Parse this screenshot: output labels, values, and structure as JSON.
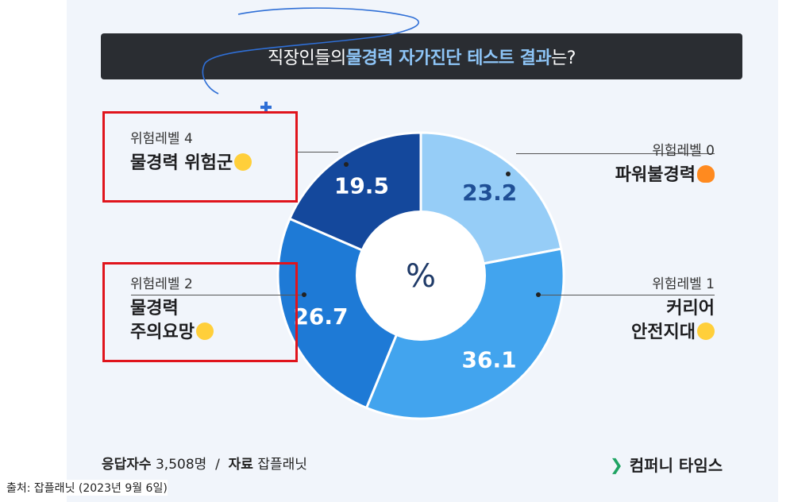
{
  "title": {
    "prefix": "직장인들의 ",
    "highlight": "물경력 자가진단 테스트 결과",
    "suffix": "는?"
  },
  "chart_data": {
    "type": "pie",
    "center_label": "%",
    "slices": [
      {
        "level": "위험레벨 0",
        "name": "파워불경력",
        "value": 23.2,
        "color": "#96cdf7"
      },
      {
        "level": "위험레벨 1",
        "name": "커리어 안전지대",
        "value": 36.1,
        "color": "#42a4ee"
      },
      {
        "level": "위험레벨 2",
        "name": "물경력 주의요망",
        "value": 26.7,
        "color": "#1e7ad6"
      },
      {
        "level": "위험레벨 4",
        "name": "물경력 위험군",
        "value": 19.5,
        "color": "#14489c"
      }
    ]
  },
  "labels": {
    "l0": {
      "level": "위험레벨 0",
      "name": "파워불경력"
    },
    "l1": {
      "level": "위험레벨 1",
      "line1": "커리어",
      "line2": "안전지대"
    },
    "l2": {
      "level": "위험레벨 2",
      "line1": "물경력",
      "line2": "주의요망"
    },
    "l4": {
      "level": "위험레벨 4",
      "name": "물경력 위험군"
    }
  },
  "footer": {
    "respondents_label": "응답자수",
    "respondents_value": "3,508명",
    "sep": "/",
    "source_label": "자료",
    "source_value": "잡플래닛",
    "brand": "컴퍼니 타임스"
  },
  "source_note": "출처: 잡플래닛 (2023년 9월 6일)"
}
